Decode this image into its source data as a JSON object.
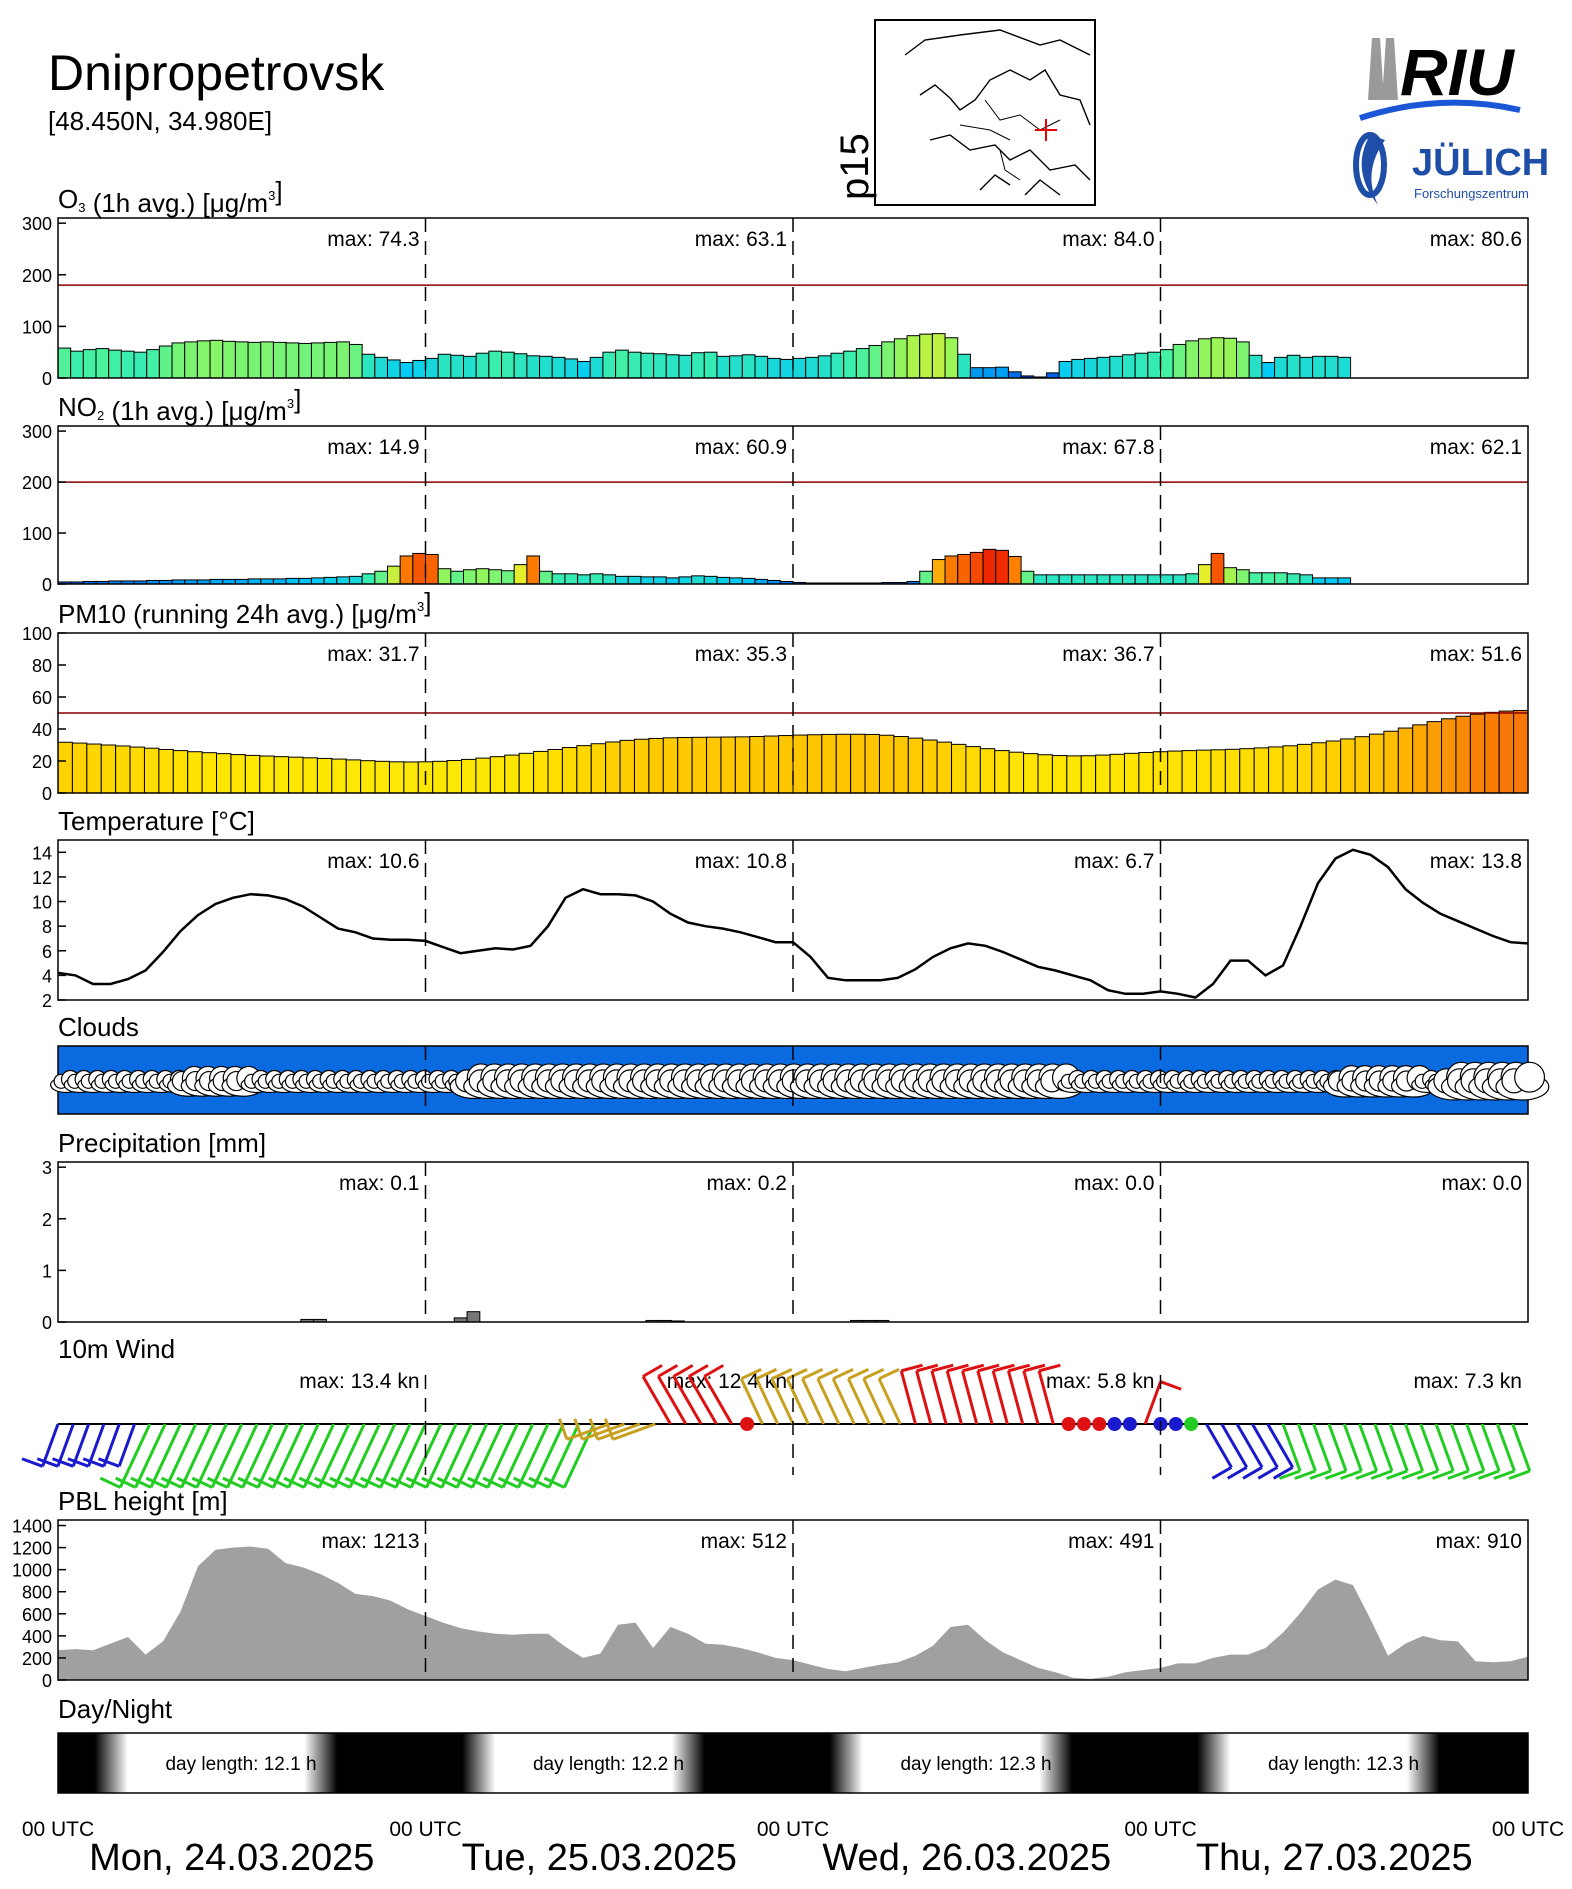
{
  "header": {
    "city": "Dnipropetrovsk",
    "coords": "[48.450N, 34.980E]",
    "map_label": "p15",
    "logo_riu": "RIU",
    "logo_julich": "JÜLICH",
    "logo_julich_sub": "Forschungszentrum"
  },
  "max_prefix": "max:",
  "x_axis": {
    "utc_label": "00 UTC",
    "days": [
      "Mon, 24.03.2025",
      "Tue, 25.03.2025",
      "Wed, 26.03.2025",
      "Thu, 27.03.2025"
    ]
  },
  "colors": {
    "threshold": "#8b0000",
    "wind_blue": "#1a1acc",
    "wind_green": "#22cc22",
    "wind_olive": "#c8a020",
    "wind_red": "#dd1111",
    "pbl_fill": "#a0a0a0",
    "cloud_sky": "#0a6be0"
  },
  "chart_data": [
    {
      "type": "bar",
      "id": "o3",
      "title_main": "O",
      "title_sub": "3",
      "title_rest": " (1h avg.)  [",
      "title_unit": "μg/m",
      "title_sup": "3",
      "title_close": "]",
      "ylim": [
        0,
        310
      ],
      "yticks": [
        0,
        100,
        200,
        300
      ],
      "threshold": 180,
      "max_labels": [
        "74.3",
        "63.1",
        "84.0",
        "80.6"
      ],
      "values": [
        58,
        52,
        55,
        57,
        54,
        52,
        50,
        55,
        62,
        68,
        70,
        72,
        73,
        71,
        70,
        69,
        70,
        69,
        68,
        67,
        68,
        69,
        70,
        65,
        46,
        40,
        35,
        30,
        34,
        38,
        46,
        44,
        42,
        48,
        52,
        50,
        47,
        43,
        42,
        40,
        37,
        32,
        40,
        50,
        54,
        50,
        48,
        47,
        45,
        44,
        49,
        50,
        42,
        43,
        45,
        42,
        38,
        36,
        38,
        40,
        43,
        48,
        52,
        57,
        63,
        70,
        76,
        82,
        85,
        86,
        78,
        46,
        20,
        20,
        21,
        12,
        4,
        2,
        10,
        32,
        36,
        38,
        40,
        42,
        45,
        48,
        50,
        55,
        65,
        72,
        76,
        78,
        77,
        70,
        44,
        30,
        40,
        44,
        40,
        42,
        42,
        40,
        null,
        null,
        null,
        null,
        null,
        null,
        null,
        null,
        null,
        null,
        null,
        null,
        null,
        null
      ]
    },
    {
      "type": "bar",
      "id": "no2",
      "title_main": "NO",
      "title_sub": "2",
      "title_rest": " (1h avg.)  [",
      "title_unit": "μg/m",
      "title_sup": "3",
      "title_close": "]",
      "ylim": [
        0,
        310
      ],
      "yticks": [
        0,
        100,
        200,
        300
      ],
      "threshold": 200,
      "max_labels": [
        "14.9",
        "60.9",
        "67.8",
        "62.1"
      ],
      "values": [
        4,
        4,
        5,
        5,
        6,
        6,
        6,
        7,
        7,
        8,
        8,
        8,
        9,
        9,
        9,
        10,
        10,
        10,
        11,
        11,
        12,
        13,
        14,
        15,
        20,
        25,
        35,
        55,
        60,
        58,
        30,
        25,
        28,
        30,
        28,
        26,
        38,
        55,
        25,
        20,
        20,
        18,
        20,
        18,
        15,
        15,
        14,
        14,
        12,
        14,
        16,
        15,
        13,
        12,
        11,
        9,
        7,
        5,
        3,
        2,
        2,
        2,
        2,
        2,
        2,
        3,
        3,
        5,
        25,
        48,
        55,
        58,
        62,
        68,
        66,
        54,
        25,
        18,
        18,
        18,
        18,
        18,
        18,
        18,
        18,
        18,
        18,
        18,
        18,
        20,
        38,
        60,
        32,
        28,
        22,
        22,
        22,
        20,
        18,
        12,
        12,
        12,
        null,
        null,
        null,
        null,
        null,
        null,
        null,
        null,
        null,
        null,
        null,
        null,
        null,
        null
      ]
    },
    {
      "type": "bar",
      "id": "pm10",
      "title_main": "PM10",
      "title_sub": "",
      "title_rest": " (running 24h avg.)  [",
      "title_unit": "μg/m",
      "title_sup": "3",
      "title_close": "]",
      "ylim": [
        0,
        100
      ],
      "yticks": [
        0,
        20,
        40,
        60,
        80,
        100
      ],
      "threshold": 50,
      "max_labels": [
        "31.7",
        "35.3",
        "36.7",
        "51.6"
      ],
      "values": [
        31.7,
        31.2,
        30.6,
        30.0,
        29.4,
        28.7,
        28.0,
        27.2,
        26.5,
        25.8,
        25.2,
        24.6,
        24.0,
        23.5,
        23.1,
        22.7,
        22.4,
        22.0,
        21.6,
        21.2,
        20.7,
        20.2,
        19.8,
        19.5,
        19.4,
        19.5,
        19.8,
        20.3,
        21.0,
        21.8,
        22.7,
        23.7,
        24.8,
        26.0,
        27.2,
        28.4,
        29.6,
        30.8,
        31.9,
        32.9,
        33.6,
        34.1,
        34.5,
        34.7,
        34.8,
        34.9,
        35.0,
        35.1,
        35.3,
        35.6,
        35.9,
        36.2,
        36.4,
        36.6,
        36.7,
        36.7,
        36.6,
        36.1,
        35.3,
        34.3,
        33.1,
        31.8,
        30.4,
        29.0,
        27.7,
        26.5,
        25.5,
        24.6,
        23.9,
        23.4,
        23.2,
        23.3,
        23.7,
        24.2,
        24.8,
        25.3,
        25.8,
        26.2,
        26.5,
        26.8,
        27.0,
        27.3,
        27.7,
        28.2,
        28.8,
        29.5,
        30.4,
        31.4,
        32.5,
        33.8,
        35.2,
        36.8,
        38.6,
        40.6,
        42.6,
        44.6,
        46.4,
        48.0,
        49.3,
        50.4,
        51.2,
        51.6
      ]
    },
    {
      "type": "line",
      "id": "temp",
      "title_main": "Temperature [°C]",
      "ylim": [
        2,
        15
      ],
      "yticks": [
        2,
        4,
        6,
        8,
        10,
        12,
        14
      ],
      "max_labels": [
        "10.6",
        "10.8",
        "6.7",
        "13.8"
      ],
      "values": [
        4.2,
        4.0,
        3.3,
        3.3,
        3.7,
        4.4,
        5.9,
        7.6,
        8.9,
        9.8,
        10.3,
        10.6,
        10.5,
        10.2,
        9.6,
        8.7,
        7.8,
        7.5,
        7.0,
        6.9,
        6.9,
        6.8,
        6.3,
        5.8,
        6.0,
        6.2,
        6.1,
        6.4,
        8.0,
        10.3,
        11.0,
        10.6,
        10.6,
        10.5,
        10.0,
        9.0,
        8.3,
        8.0,
        7.8,
        7.5,
        7.1,
        6.7,
        6.7,
        5.5,
        3.8,
        3.6,
        3.6,
        3.6,
        3.8,
        4.5,
        5.5,
        6.2,
        6.6,
        6.4,
        5.9,
        5.3,
        4.7,
        4.4,
        4.0,
        3.6,
        2.8,
        2.5,
        2.5,
        2.7,
        2.5,
        2.2,
        3.3,
        5.2,
        5.2,
        4.0,
        4.8,
        8.0,
        11.5,
        13.5,
        14.2,
        13.8,
        12.8,
        11.0,
        9.9,
        9.0,
        8.4,
        7.8,
        7.2,
        6.7,
        6.6
      ]
    },
    {
      "type": "bar",
      "id": "precip",
      "title_main": "Precipitation [mm]",
      "ylim": [
        0,
        3.1
      ],
      "yticks": [
        0,
        1,
        2,
        3
      ],
      "max_labels": [
        "0.1",
        "0.2",
        "0.0",
        "0.0"
      ],
      "values": [
        0,
        0,
        0,
        0,
        0,
        0,
        0,
        0,
        0,
        0,
        0,
        0,
        0,
        0,
        0,
        0,
        0,
        0,
        0,
        0.05,
        0.05,
        0,
        0,
        0,
        0,
        0,
        0,
        0,
        0,
        0,
        0,
        0.08,
        0.2,
        0,
        0,
        0,
        0,
        0,
        0,
        0,
        0,
        0,
        0,
        0,
        0,
        0,
        0.03,
        0.03,
        0.02,
        0,
        0,
        0,
        0,
        0,
        0,
        0,
        0,
        0,
        0,
        0,
        0,
        0,
        0.03,
        0.03,
        0.03,
        0,
        0,
        0,
        0,
        0,
        0,
        0,
        0,
        0,
        0,
        0,
        0,
        0,
        0,
        0,
        0,
        0,
        0,
        0,
        0,
        0,
        0,
        0,
        0,
        0,
        0,
        0,
        0,
        0,
        0,
        0,
        0,
        0,
        0,
        0,
        0,
        0,
        0,
        0,
        0,
        0,
        0,
        0,
        0,
        0,
        0,
        0,
        0,
        0,
        0
      ]
    },
    {
      "type": "area",
      "id": "pbl",
      "title_main": "PBL height [m]",
      "ylim": [
        0,
        1450
      ],
      "yticks": [
        0,
        200,
        400,
        600,
        800,
        1000,
        1200,
        1400
      ],
      "max_labels": [
        "1213",
        "512",
        "491",
        "910"
      ],
      "values": [
        270,
        280,
        270,
        330,
        390,
        230,
        350,
        620,
        1030,
        1180,
        1200,
        1210,
        1190,
        1060,
        1020,
        960,
        880,
        780,
        760,
        720,
        640,
        580,
        520,
        470,
        440,
        420,
        410,
        420,
        420,
        300,
        200,
        240,
        500,
        520,
        290,
        480,
        420,
        330,
        320,
        290,
        250,
        200,
        180,
        140,
        100,
        80,
        110,
        140,
        160,
        220,
        310,
        480,
        500,
        360,
        250,
        180,
        110,
        70,
        20,
        10,
        30,
        70,
        90,
        110,
        150,
        150,
        200,
        230,
        230,
        290,
        430,
        610,
        820,
        910,
        860,
        550,
        220,
        330,
        400,
        360,
        350,
        170,
        160,
        170,
        210
      ]
    },
    {
      "type": "table",
      "id": "wind",
      "title_main": "10m Wind",
      "max_labels": [
        "13.4 kn",
        "12.4 kn",
        "5.8 kn",
        "7.3 kn"
      ]
    },
    {
      "type": "table",
      "id": "clouds",
      "title_main": "Clouds"
    },
    {
      "type": "table",
      "id": "daynight",
      "title_main": "Day/Night",
      "day_length_prefix": "day length:",
      "day_lengths": [
        "12.1 h",
        "12.2 h",
        "12.3 h",
        "12.3 h"
      ]
    }
  ]
}
